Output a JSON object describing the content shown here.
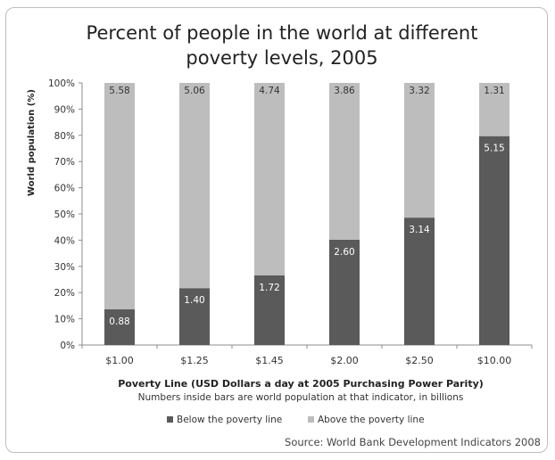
{
  "chart_data": {
    "type": "bar",
    "stacked": true,
    "title_lines": [
      "Percent of people in the world at different",
      "poverty levels, 2005"
    ],
    "ylabel": "World population (%)",
    "xlabel": "Poverty Line (USD Dollars a day at 2005 Purchasing Power Parity)",
    "note": "Numbers inside bars are world population at that indicator, in billions",
    "source": "Source: World Bank Development Indicators 2008",
    "categories": [
      "$1.00",
      "$1.25",
      "$1.45",
      "$2.00",
      "$2.50",
      "$10.00"
    ],
    "ylim": [
      0,
      100
    ],
    "yticks": [
      0,
      10,
      20,
      30,
      40,
      50,
      60,
      70,
      80,
      90,
      100
    ],
    "ytick_labels": [
      "0%",
      "10%",
      "20%",
      "30%",
      "40%",
      "50%",
      "60%",
      "70%",
      "80%",
      "90%",
      "100%"
    ],
    "grid": false,
    "legend_position": "bottom",
    "series": [
      {
        "name": "Below the poverty line",
        "color": "#5a5a5a",
        "values": [
          13.6,
          21.7,
          26.6,
          40.2,
          48.6,
          79.7
        ],
        "labels": [
          "0.88",
          "1.40",
          "1.72",
          "2.60",
          "3.14",
          "5.15"
        ]
      },
      {
        "name": "Above the poverty line",
        "color": "#bdbdbd",
        "values": [
          86.4,
          78.3,
          73.4,
          59.8,
          51.4,
          20.3
        ],
        "labels": [
          "5.58",
          "5.06",
          "4.74",
          "3.86",
          "3.32",
          "1.31"
        ]
      }
    ]
  }
}
